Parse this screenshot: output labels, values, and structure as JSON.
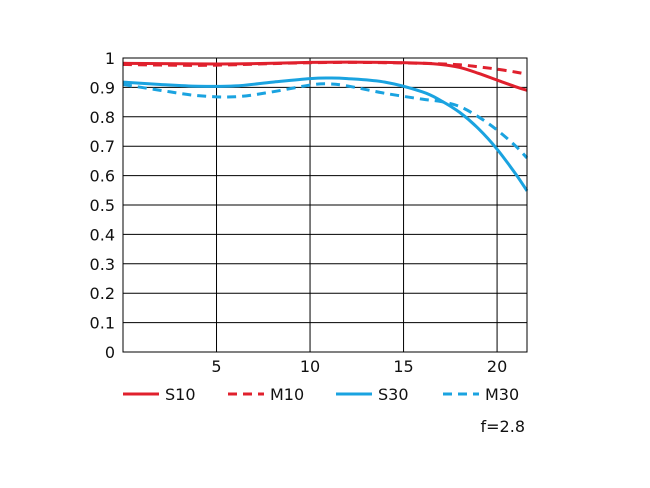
{
  "chart_data": {
    "type": "line",
    "title": "",
    "xlabel": "",
    "ylabel": "",
    "xlim": [
      0,
      21.6
    ],
    "ylim": [
      0,
      1
    ],
    "xticks": [
      5,
      10,
      15,
      20
    ],
    "yticks": [
      0,
      0.1,
      0.2,
      0.3,
      0.4,
      0.5,
      0.6,
      0.7,
      0.8,
      0.9,
      1
    ],
    "ytick_labels": [
      "0",
      "0.1",
      "0.2",
      "0.3",
      "0.4",
      "0.5",
      "0.6",
      "0.7",
      "0.8",
      "0.9",
      "1"
    ],
    "grid": true,
    "legend_position": "bottom",
    "note": "f=2.8",
    "series": [
      {
        "name": "S10",
        "color": "#e0202d",
        "dashed": false,
        "x": [
          0,
          2,
          4,
          6,
          8,
          10,
          12,
          14,
          16,
          17,
          18,
          19,
          20,
          21,
          21.6
        ],
        "y": [
          0.982,
          0.981,
          0.98,
          0.98,
          0.982,
          0.985,
          0.986,
          0.985,
          0.982,
          0.978,
          0.968,
          0.948,
          0.925,
          0.902,
          0.89
        ]
      },
      {
        "name": "M10",
        "color": "#e0202d",
        "dashed": true,
        "x": [
          0,
          2,
          4,
          6,
          8,
          10,
          12,
          14,
          16,
          17,
          18,
          19,
          20,
          21,
          21.6
        ],
        "y": [
          0.978,
          0.976,
          0.975,
          0.977,
          0.981,
          0.984,
          0.985,
          0.984,
          0.982,
          0.98,
          0.977,
          0.97,
          0.962,
          0.952,
          0.945
        ]
      },
      {
        "name": "S30",
        "color": "#1aa3e0",
        "dashed": false,
        "x": [
          0,
          2,
          4,
          6,
          8,
          10,
          11,
          12,
          14,
          16,
          17,
          18,
          19,
          20,
          21,
          21.6
        ],
        "y": [
          0.918,
          0.91,
          0.904,
          0.905,
          0.918,
          0.93,
          0.932,
          0.93,
          0.918,
          0.885,
          0.855,
          0.815,
          0.76,
          0.69,
          0.605,
          0.548
        ]
      },
      {
        "name": "M30",
        "color": "#1aa3e0",
        "dashed": true,
        "x": [
          0,
          2,
          4,
          6,
          8,
          10,
          11,
          12,
          14,
          16,
          17,
          18,
          19,
          20,
          21,
          21.6
        ],
        "y": [
          0.91,
          0.89,
          0.872,
          0.868,
          0.885,
          0.908,
          0.912,
          0.905,
          0.88,
          0.86,
          0.852,
          0.835,
          0.8,
          0.755,
          0.7,
          0.66
        ]
      }
    ]
  }
}
